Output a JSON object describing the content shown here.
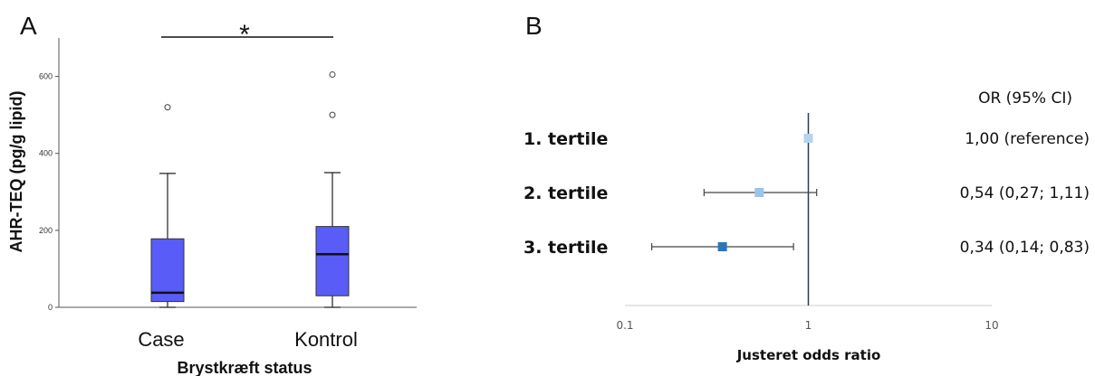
{
  "chart_data": [
    {
      "panel": "A",
      "type": "box",
      "ylabel": "AHR-TEQ (pg/g lipid)",
      "xlabel": "Brystkræft status",
      "yticks": [
        0,
        200,
        400,
        600
      ],
      "ylim": [
        0,
        700
      ],
      "significance": "*",
      "box_color": "#5a5cf7",
      "boxes": [
        {
          "category": "Case",
          "whisker_low": 0,
          "q1": 15,
          "median": 38,
          "q3": 178,
          "whisker_high": 348,
          "outliers": [
            520
          ]
        },
        {
          "category": "Kontrol",
          "whisker_low": 0,
          "q1": 30,
          "median": 138,
          "q3": 210,
          "whisker_high": 350,
          "outliers": [
            500,
            605
          ]
        }
      ]
    },
    {
      "panel": "B",
      "type": "forest",
      "xlabel": "Justeret odds ratio",
      "xscale": "log",
      "xticks": [
        0.1,
        1,
        10
      ],
      "xtick_labels": [
        "0.1",
        "1",
        "10"
      ],
      "reference_line": 1,
      "ci_header": "OR (95% CI)",
      "rows": [
        {
          "label": "1. tertile",
          "or": 1.0,
          "ci": null,
          "text": "1,00 (reference)",
          "color": "#b7d3ef"
        },
        {
          "label": "2. tertile",
          "or": 0.54,
          "ci": [
            0.27,
            1.11
          ],
          "text": "0,54 (0,27; 1,11)",
          "color": "#9dc3ea"
        },
        {
          "label": "3. tertile",
          "or": 0.34,
          "ci": [
            0.14,
            0.83
          ],
          "text": "0,34 (0,14; 0,83)",
          "color": "#2e75b6"
        }
      ]
    }
  ]
}
